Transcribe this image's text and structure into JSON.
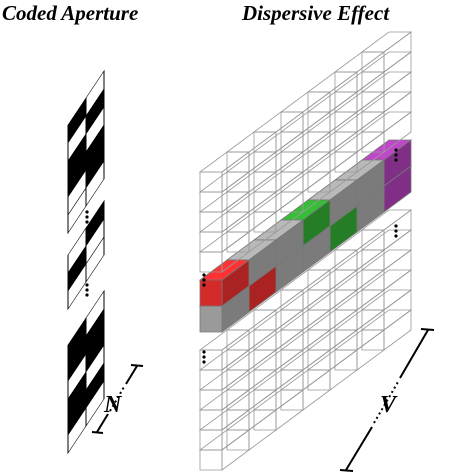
{
  "header": {
    "left_title": "Coded Aperture",
    "right_title": "Dispersive Effect"
  },
  "labels": {
    "n": "N",
    "v": "V"
  }
}
